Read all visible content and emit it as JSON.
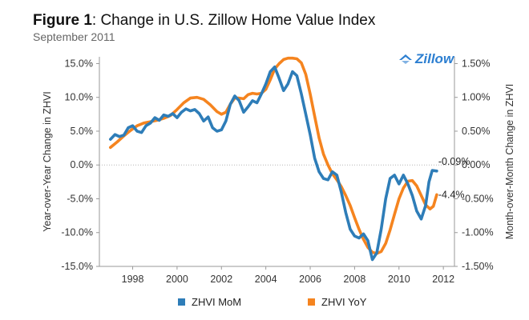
{
  "header": {
    "title_lead": "Figure 1",
    "title_rest": ": Change in U.S. Zillow Home Value Index",
    "subtitle": "September 2011"
  },
  "logo": {
    "text": "Zillow"
  },
  "colors": {
    "mom": "#2e7db8",
    "yoy": "#f5841f",
    "axis": "#9a9a9a",
    "zero_line": "#b5b5b5",
    "logo": "#2d7fd1"
  },
  "legend": [
    {
      "label": "ZHVI MoM",
      "color": "#2e7db8"
    },
    {
      "label": "ZHVI YoY",
      "color": "#f5841f"
    }
  ],
  "chart_data": {
    "type": "line",
    "title": "Change in U.S. Zillow Home Value Index",
    "subtitle": "September 2011",
    "x_ticks": [
      "1998",
      "2000",
      "2002",
      "2004",
      "2006",
      "2008",
      "2010",
      "2012"
    ],
    "xlim": [
      1996.5,
      2012.5
    ],
    "y_left": {
      "label": "Year-over-Year Change in ZHVI",
      "ticks": [
        "15.0%",
        "10.0%",
        "5.0%",
        "0.0%",
        "-5.0%",
        "-10.0%",
        "-15.0%"
      ],
      "ylim": [
        -15.0,
        16.0
      ]
    },
    "y_right": {
      "label": "Month-over-Month Change in ZHVI",
      "ticks": [
        "1.50%",
        "1.00%",
        "0.50%",
        "0.00%",
        "-0.50%",
        "-1.00%",
        "-1.50%"
      ],
      "ylim": [
        -1.5,
        1.6
      ]
    },
    "grid": false,
    "zero_reference_line": true,
    "legend_position": "bottom",
    "annotations": [
      {
        "text": "-0.09%",
        "series": "ZHVI MoM",
        "x": 2011.7,
        "y": -0.09
      },
      {
        "text": "-4.4%",
        "series": "ZHVI YoY",
        "x": 2011.7,
        "y": -4.4
      }
    ],
    "series": [
      {
        "name": "ZHVI YoY",
        "axis": "left",
        "points": [
          [
            1997.0,
            2.6
          ],
          [
            1997.3,
            3.4
          ],
          [
            1997.6,
            4.3
          ],
          [
            1997.9,
            5.1
          ],
          [
            1998.2,
            5.8
          ],
          [
            1998.5,
            6.2
          ],
          [
            1998.8,
            6.4
          ],
          [
            1999.1,
            6.6
          ],
          [
            1999.4,
            6.9
          ],
          [
            1999.7,
            7.3
          ],
          [
            2000.0,
            8.2
          ],
          [
            2000.3,
            9.2
          ],
          [
            2000.6,
            9.9
          ],
          [
            2000.9,
            10.0
          ],
          [
            2001.2,
            9.7
          ],
          [
            2001.5,
            8.9
          ],
          [
            2001.8,
            7.9
          ],
          [
            2002.0,
            7.5
          ],
          [
            2002.2,
            7.8
          ],
          [
            2002.4,
            9.0
          ],
          [
            2002.6,
            9.9
          ],
          [
            2002.8,
            9.9
          ],
          [
            2003.0,
            9.8
          ],
          [
            2003.2,
            10.4
          ],
          [
            2003.4,
            10.6
          ],
          [
            2003.6,
            10.5
          ],
          [
            2003.8,
            10.6
          ],
          [
            2004.0,
            11.2
          ],
          [
            2004.2,
            12.6
          ],
          [
            2004.4,
            14.2
          ],
          [
            2004.6,
            15.0
          ],
          [
            2004.8,
            15.6
          ],
          [
            2005.0,
            15.8
          ],
          [
            2005.2,
            15.8
          ],
          [
            2005.4,
            15.7
          ],
          [
            2005.6,
            15.1
          ],
          [
            2005.8,
            13.4
          ],
          [
            2006.0,
            10.5
          ],
          [
            2006.2,
            7.2
          ],
          [
            2006.4,
            4.0
          ],
          [
            2006.6,
            1.6
          ],
          [
            2006.8,
            0.0
          ],
          [
            2007.0,
            -1.3
          ],
          [
            2007.2,
            -2.2
          ],
          [
            2007.4,
            -3.2
          ],
          [
            2007.6,
            -4.5
          ],
          [
            2007.8,
            -6.0
          ],
          [
            2008.0,
            -7.8
          ],
          [
            2008.2,
            -9.5
          ],
          [
            2008.4,
            -11.0
          ],
          [
            2008.6,
            -12.2
          ],
          [
            2008.8,
            -12.9
          ],
          [
            2009.0,
            -13.1
          ],
          [
            2009.2,
            -12.8
          ],
          [
            2009.4,
            -11.6
          ],
          [
            2009.6,
            -9.6
          ],
          [
            2009.8,
            -7.3
          ],
          [
            2010.0,
            -5.0
          ],
          [
            2010.2,
            -3.4
          ],
          [
            2010.4,
            -2.4
          ],
          [
            2010.6,
            -2.3
          ],
          [
            2010.8,
            -3.1
          ],
          [
            2011.0,
            -4.5
          ],
          [
            2011.2,
            -5.9
          ],
          [
            2011.4,
            -6.5
          ],
          [
            2011.55,
            -6.1
          ],
          [
            2011.7,
            -4.4
          ]
        ]
      },
      {
        "name": "ZHVI MoM",
        "axis": "right",
        "points": [
          [
            1997.0,
            0.38
          ],
          [
            1997.2,
            0.45
          ],
          [
            1997.4,
            0.42
          ],
          [
            1997.6,
            0.44
          ],
          [
            1997.8,
            0.55
          ],
          [
            1998.0,
            0.58
          ],
          [
            1998.2,
            0.5
          ],
          [
            1998.4,
            0.48
          ],
          [
            1998.6,
            0.58
          ],
          [
            1998.8,
            0.62
          ],
          [
            1999.0,
            0.7
          ],
          [
            1999.2,
            0.66
          ],
          [
            1999.4,
            0.74
          ],
          [
            1999.6,
            0.72
          ],
          [
            1999.8,
            0.76
          ],
          [
            2000.0,
            0.7
          ],
          [
            2000.2,
            0.78
          ],
          [
            2000.4,
            0.83
          ],
          [
            2000.6,
            0.8
          ],
          [
            2000.8,
            0.82
          ],
          [
            2001.0,
            0.76
          ],
          [
            2001.2,
            0.65
          ],
          [
            2001.4,
            0.71
          ],
          [
            2001.6,
            0.55
          ],
          [
            2001.8,
            0.5
          ],
          [
            2002.0,
            0.52
          ],
          [
            2002.2,
            0.65
          ],
          [
            2002.4,
            0.9
          ],
          [
            2002.6,
            1.02
          ],
          [
            2002.8,
            0.95
          ],
          [
            2003.0,
            0.78
          ],
          [
            2003.2,
            0.86
          ],
          [
            2003.4,
            0.95
          ],
          [
            2003.6,
            0.92
          ],
          [
            2003.8,
            1.05
          ],
          [
            2004.0,
            1.2
          ],
          [
            2004.2,
            1.38
          ],
          [
            2004.4,
            1.45
          ],
          [
            2004.6,
            1.28
          ],
          [
            2004.8,
            1.1
          ],
          [
            2005.0,
            1.2
          ],
          [
            2005.2,
            1.38
          ],
          [
            2005.4,
            1.32
          ],
          [
            2005.6,
            1.05
          ],
          [
            2005.8,
            0.75
          ],
          [
            2006.0,
            0.45
          ],
          [
            2006.2,
            0.1
          ],
          [
            2006.4,
            -0.1
          ],
          [
            2006.6,
            -0.2
          ],
          [
            2006.8,
            -0.22
          ],
          [
            2007.0,
            -0.1
          ],
          [
            2007.2,
            -0.15
          ],
          [
            2007.4,
            -0.4
          ],
          [
            2007.6,
            -0.7
          ],
          [
            2007.8,
            -0.95
          ],
          [
            2008.0,
            -1.05
          ],
          [
            2008.2,
            -1.08
          ],
          [
            2008.4,
            -1.02
          ],
          [
            2008.6,
            -1.12
          ],
          [
            2008.8,
            -1.4
          ],
          [
            2009.0,
            -1.3
          ],
          [
            2009.2,
            -0.95
          ],
          [
            2009.4,
            -0.5
          ],
          [
            2009.6,
            -0.2
          ],
          [
            2009.8,
            -0.15
          ],
          [
            2010.0,
            -0.28
          ],
          [
            2010.2,
            -0.15
          ],
          [
            2010.4,
            -0.28
          ],
          [
            2010.6,
            -0.45
          ],
          [
            2010.8,
            -0.68
          ],
          [
            2011.0,
            -0.8
          ],
          [
            2011.2,
            -0.6
          ],
          [
            2011.35,
            -0.25
          ],
          [
            2011.5,
            -0.08
          ],
          [
            2011.7,
            -0.09
          ]
        ]
      }
    ]
  }
}
